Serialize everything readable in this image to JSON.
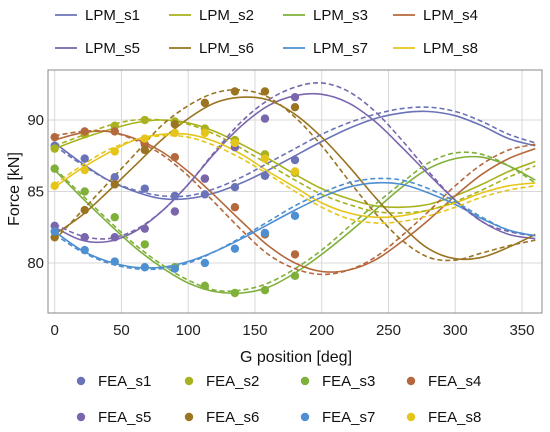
{
  "chart_data": {
    "type": "line",
    "xlabel": "G position [deg]",
    "ylabel": "Force [kN]",
    "xlim": [
      -5,
      365
    ],
    "ylim": [
      76.5,
      93.5
    ],
    "xticks": [
      0,
      50,
      100,
      150,
      200,
      250,
      300,
      350
    ],
    "yticks": [
      80,
      85,
      90
    ],
    "grid": true,
    "x": [
      0,
      20,
      40,
      60,
      80,
      100,
      120,
      140,
      160,
      180,
      200,
      220,
      240,
      260,
      280,
      300,
      320,
      340,
      360
    ],
    "lines": [
      {
        "name": "LPM_s1",
        "color": "#6a73b8",
        "style": "solid",
        "values": [
          88.4,
          87.0,
          85.8,
          85.0,
          84.5,
          84.5,
          84.9,
          85.6,
          86.5,
          87.5,
          88.5,
          89.4,
          90.1,
          90.5,
          90.6,
          90.3,
          89.6,
          88.7,
          88.2
        ]
      },
      {
        "name": "LPM_s2",
        "color": "#a8b21e",
        "style": "solid",
        "values": [
          88.0,
          88.7,
          89.3,
          89.8,
          90.0,
          89.8,
          89.2,
          88.3,
          87.3,
          86.2,
          85.2,
          84.5,
          84.0,
          83.9,
          84.1,
          84.7,
          85.5,
          86.4,
          87.1
        ]
      },
      {
        "name": "LPM_s3",
        "color": "#7fb03a",
        "style": "solid",
        "values": [
          86.5,
          84.6,
          82.8,
          81.1,
          79.7,
          78.6,
          78.0,
          77.9,
          78.3,
          79.3,
          80.6,
          82.1,
          83.7,
          85.3,
          86.6,
          87.3,
          87.4,
          86.8,
          85.8
        ]
      },
      {
        "name": "LPM_s4",
        "color": "#b5683c",
        "style": "solid",
        "values": [
          88.6,
          89.1,
          89.2,
          88.7,
          87.8,
          86.4,
          84.7,
          82.9,
          81.2,
          80.0,
          79.4,
          79.5,
          80.2,
          81.5,
          83.0,
          84.7,
          86.2,
          87.3,
          88.0
        ]
      },
      {
        "name": "LPM_s5",
        "color": "#7a66ad",
        "style": "solid",
        "values": [
          82.5,
          81.6,
          81.5,
          82.2,
          83.6,
          85.5,
          87.7,
          89.6,
          91.0,
          91.7,
          91.8,
          91.2,
          89.9,
          88.1,
          86.2,
          84.4,
          82.9,
          82.0,
          81.7
        ]
      },
      {
        "name": "LPM_s6",
        "color": "#9a7420",
        "style": "solid",
        "values": [
          82.0,
          83.3,
          85.0,
          86.8,
          88.6,
          90.1,
          91.2,
          91.6,
          91.4,
          90.4,
          88.8,
          86.8,
          84.6,
          82.6,
          81.0,
          80.3,
          80.4,
          81.1,
          82.0
        ]
      },
      {
        "name": "LPM_s7",
        "color": "#4d8fd1",
        "style": "solid",
        "values": [
          82.2,
          80.9,
          80.1,
          79.7,
          79.7,
          80.1,
          80.8,
          81.7,
          82.7,
          83.7,
          84.6,
          85.3,
          85.6,
          85.5,
          84.9,
          84.1,
          83.1,
          82.3,
          81.9
        ]
      },
      {
        "name": "LPM_s8",
        "color": "#e6c51a",
        "style": "solid",
        "values": [
          85.3,
          86.6,
          87.7,
          88.6,
          89.0,
          89.0,
          88.5,
          87.6,
          86.4,
          85.3,
          84.2,
          83.5,
          83.2,
          83.3,
          83.7,
          84.2,
          84.9,
          85.4,
          85.6
        ]
      },
      {
        "name": "",
        "color": "#6a73b8",
        "style": "dashed",
        "values": [
          88.2,
          86.9,
          85.8,
          85.1,
          84.7,
          84.7,
          85.2,
          86.0,
          87.0,
          88.0,
          89.0,
          89.8,
          90.4,
          90.8,
          90.9,
          90.6,
          89.9,
          89.0,
          88.4
        ]
      },
      {
        "name": "",
        "color": "#a8b21e",
        "style": "dashed",
        "values": [
          88.2,
          88.9,
          89.6,
          90.0,
          90.0,
          89.7,
          89.0,
          88.0,
          86.9,
          85.8,
          84.8,
          84.1,
          83.6,
          83.5,
          83.7,
          84.3,
          85.1,
          86.0,
          86.8
        ]
      },
      {
        "name": "",
        "color": "#7fb03a",
        "style": "dashed",
        "values": [
          86.6,
          84.8,
          83.0,
          81.3,
          79.9,
          78.8,
          78.1,
          78.1,
          78.6,
          79.6,
          80.9,
          82.5,
          84.1,
          85.6,
          87.0,
          87.7,
          87.6,
          86.8,
          85.6
        ]
      },
      {
        "name": "",
        "color": "#b5683c",
        "style": "dashed",
        "values": [
          88.9,
          89.2,
          89.2,
          88.6,
          87.6,
          86.1,
          84.2,
          82.3,
          80.6,
          79.6,
          79.2,
          79.5,
          80.4,
          81.9,
          83.6,
          85.4,
          86.9,
          87.9,
          88.3
        ]
      },
      {
        "name": "",
        "color": "#7a66ad",
        "style": "dashed",
        "values": [
          82.7,
          81.9,
          81.7,
          82.3,
          83.6,
          85.5,
          87.8,
          89.9,
          91.4,
          92.3,
          92.6,
          92.0,
          90.6,
          88.6,
          86.4,
          84.4,
          82.9,
          82.2,
          81.9
        ]
      },
      {
        "name": "",
        "color": "#9a7420",
        "style": "dashed",
        "values": [
          81.6,
          83.6,
          85.6,
          87.6,
          89.6,
          91.0,
          91.9,
          92.1,
          91.6,
          90.2,
          88.2,
          85.8,
          83.5,
          81.6,
          80.4,
          80.2,
          80.7,
          81.2,
          81.6
        ]
      },
      {
        "name": "",
        "color": "#4d8fd1",
        "style": "dashed",
        "values": [
          82.0,
          80.8,
          80.0,
          79.6,
          79.6,
          80.0,
          80.8,
          81.8,
          82.9,
          84.0,
          84.9,
          85.6,
          85.9,
          85.8,
          85.2,
          84.3,
          83.2,
          82.3,
          81.9
        ]
      },
      {
        "name": "",
        "color": "#e6c51a",
        "style": "dashed",
        "values": [
          85.5,
          86.8,
          87.9,
          88.6,
          88.9,
          88.8,
          88.2,
          87.3,
          86.2,
          85.0,
          83.9,
          83.1,
          82.8,
          82.9,
          83.3,
          83.9,
          84.6,
          85.1,
          85.4
        ]
      }
    ],
    "scatter": [
      {
        "name": "FEA_s1",
        "color": "#6a73b8",
        "x": [
          0,
          22.5,
          45,
          67.5,
          90,
          112.5,
          135,
          157.5,
          180
        ],
        "y": [
          88.2,
          87.3,
          86.0,
          85.2,
          84.7,
          84.8,
          85.3,
          86.1,
          87.2
        ]
      },
      {
        "name": "FEA_s2",
        "color": "#a8b21e",
        "x": [
          0,
          22.5,
          45,
          67.5,
          90,
          112.5,
          135,
          157.5,
          180
        ],
        "y": [
          88.0,
          89.0,
          89.6,
          90.0,
          89.9,
          89.4,
          88.6,
          87.6,
          86.3
        ]
      },
      {
        "name": "FEA_s3",
        "color": "#7fb03a",
        "x": [
          0,
          22.5,
          45,
          67.5,
          90,
          112.5,
          135,
          157.5,
          180
        ],
        "y": [
          86.6,
          85.0,
          83.2,
          81.3,
          79.7,
          78.4,
          77.9,
          78.1,
          79.1
        ]
      },
      {
        "name": "FEA_s4",
        "color": "#b5683c",
        "x": [
          0,
          22.5,
          45,
          67.5,
          90,
          112.5,
          135,
          157.5,
          180
        ],
        "y": [
          88.8,
          89.2,
          89.2,
          88.3,
          87.4,
          85.9,
          83.9,
          82.0,
          80.6
        ]
      },
      {
        "name": "FEA_s5",
        "color": "#7a66ad",
        "x": [
          0,
          22.5,
          45,
          67.5,
          90,
          112.5,
          135,
          157.5,
          180
        ],
        "y": [
          82.6,
          81.8,
          81.8,
          82.4,
          83.6,
          85.9,
          88.1,
          90.1,
          91.6
        ]
      },
      {
        "name": "FEA_s6",
        "color": "#9a7420",
        "x": [
          0,
          22.5,
          45,
          67.5,
          90,
          112.5,
          135,
          157.5,
          180
        ],
        "y": [
          81.8,
          83.7,
          85.5,
          87.9,
          89.7,
          91.2,
          92.0,
          92.0,
          90.9
        ]
      },
      {
        "name": "FEA_s7",
        "color": "#4d8fd1",
        "x": [
          0,
          22.5,
          45,
          67.5,
          90,
          112.5,
          135,
          157.5,
          180
        ],
        "y": [
          82.2,
          80.9,
          80.1,
          79.7,
          79.6,
          80.0,
          81.0,
          82.1,
          83.3
        ]
      },
      {
        "name": "FEA_s8",
        "color": "#e6c51a",
        "x": [
          0,
          22.5,
          45,
          67.5,
          90,
          112.5,
          135,
          157.5,
          180
        ],
        "y": [
          85.4,
          86.5,
          87.8,
          88.7,
          89.1,
          89.1,
          88.4,
          87.3,
          86.4
        ]
      }
    ],
    "legend_top": "top",
    "legend_bottom": "bottom"
  }
}
